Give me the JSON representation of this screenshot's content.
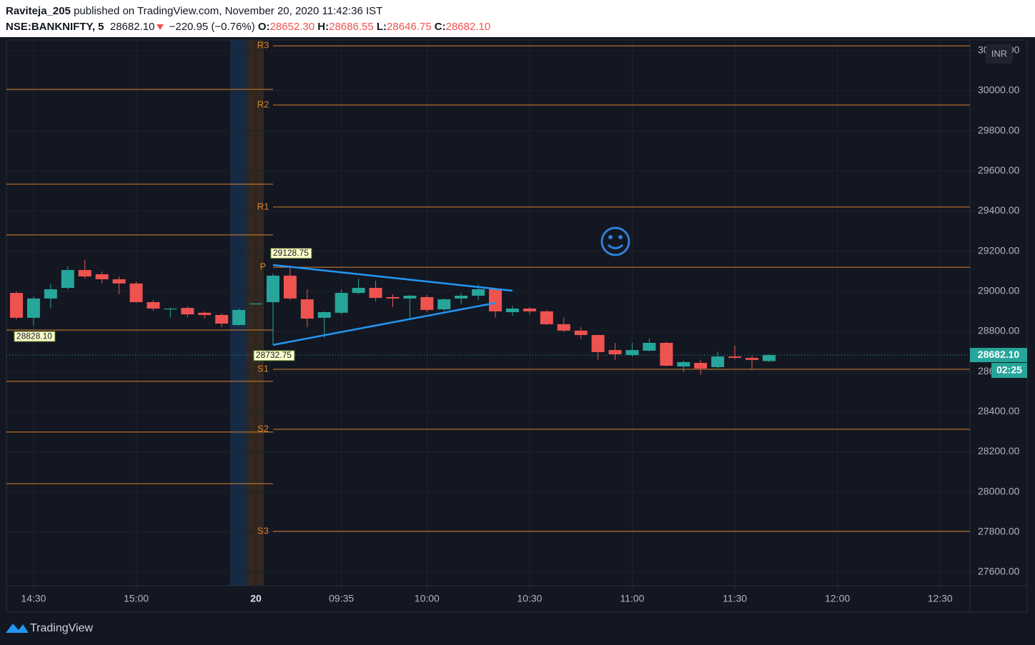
{
  "header": {
    "author": "Raviteja_205",
    "published": "published on TradingView.com, November 20, 2020 11:42:36 IST",
    "symbol": "NSE:BANKNIFTY, 5",
    "last": "28682.10",
    "change": "−220.95 (−0.76%)",
    "ohlc": [
      {
        "key": "O:",
        "value": "28652.30"
      },
      {
        "key": "H:",
        "value": "28686.55"
      },
      {
        "key": "L:",
        "value": "28646.75"
      },
      {
        "key": "C:",
        "value": "28682.10"
      }
    ]
  },
  "chart_data": {
    "type": "candlestick",
    "categories": [
      null,
      "14:30",
      null,
      null,
      null,
      null,
      null,
      "15:00",
      null,
      null,
      null,
      null,
      null,
      null,
      "20",
      null,
      null,
      null,
      null,
      "09:35",
      null,
      null,
      null,
      null,
      "10:00",
      null,
      null,
      null,
      null,
      null,
      "10:30",
      null,
      null,
      null,
      null,
      null,
      "11:00",
      null,
      null,
      null,
      null,
      null,
      "11:30",
      null,
      null,
      null,
      null,
      null,
      "12:00",
      null,
      null,
      null,
      null,
      null,
      "12:30"
    ],
    "open": [
      28992,
      28868,
      28964,
      29017,
      29106,
      29085,
      29060,
      29039,
      28946,
      28910,
      28917,
      28893,
      28882,
      28832,
      28935,
      28946,
      29078,
      28960,
      28868,
      28893,
      28992,
      29017,
      28971,
      28964,
      28971,
      28910,
      28964,
      28978,
      29010,
      28896,
      28914,
      28900,
      28836,
      28804,
      28782,
      28707,
      28682,
      28704,
      28743,
      28625,
      28643,
      28622,
      28675,
      28668,
      28652.3,
      null,
      null,
      null,
      null,
      null,
      null,
      null,
      null,
      null,
      null
    ],
    "high": [
      28999,
      28974,
      29035,
      29124,
      29156,
      29099,
      29074,
      29049,
      28957,
      28917,
      28925,
      28900,
      28889,
      28914,
      28939,
      29088,
      29128.75,
      29010,
      28900,
      29010,
      29063,
      29053,
      28985,
      28982,
      28982,
      28964,
      28992,
      29035,
      29017,
      28928,
      28921,
      28907,
      28868,
      28821,
      28785,
      28743,
      28743,
      28764,
      28747,
      28654,
      28658,
      28697,
      28729,
      28679,
      28686.55,
      null,
      null,
      null,
      null,
      null,
      null,
      null,
      null,
      null,
      null
    ],
    "low": [
      28860,
      28828.1,
      28914,
      29010,
      29063,
      29039,
      28985,
      28942,
      28903,
      28868,
      28871,
      28864,
      28821,
      28828,
      28935,
      28732.75,
      28957,
      28821,
      28768,
      28885,
      28985,
      28950,
      28921,
      28868,
      28896,
      28900,
      28935,
      28957,
      28868,
      28878,
      28885,
      28832,
      28796,
      28761,
      28658,
      28658,
      28675,
      28700,
      28625,
      28597,
      28583,
      28615,
      28661,
      28611,
      28646.75,
      null,
      null,
      null,
      null,
      null,
      null,
      null,
      null,
      null,
      null
    ],
    "close": [
      28868,
      28964,
      29010,
      29106,
      29074,
      29060,
      29039,
      28946,
      28914,
      28914,
      28885,
      28882,
      28839,
      28907,
      28939,
      29078,
      28964,
      28864,
      28896,
      28992,
      29017,
      28967,
      28964,
      28978,
      28907,
      28960,
      28978,
      29010,
      28900,
      28914,
      28900,
      28836,
      28804,
      28782,
      28697,
      28686,
      28707,
      28743,
      28629,
      28647,
      28615,
      28675,
      28668,
      28658,
      28682.1,
      null,
      null,
      null,
      null,
      null,
      null,
      null,
      null,
      null,
      null
    ],
    "up_color": "#26a69a",
    "down_color": "#ef5350",
    "ylim": [
      27532,
      30253
    ],
    "yticks": [
      {
        "value": 27600,
        "label": "27600.00"
      },
      {
        "value": 27800,
        "label": "27800.00"
      },
      {
        "value": 28000,
        "label": "28000.00"
      },
      {
        "value": 28200,
        "label": "28200.00"
      },
      {
        "value": 28400,
        "label": "28400.00"
      },
      {
        "value": 28600,
        "label": "28600.00"
      },
      {
        "value": 28800,
        "label": "28800.00"
      },
      {
        "value": 29000,
        "label": "29000.00"
      },
      {
        "value": 29200,
        "label": "29200.00"
      },
      {
        "value": 29400,
        "label": "29400.00"
      },
      {
        "value": 29600,
        "label": "29600.00"
      },
      {
        "value": 29800,
        "label": "29800.00"
      },
      {
        "value": 30000,
        "label": "30000.00"
      },
      {
        "value": 30200,
        "label": "30200.00"
      }
    ],
    "grid": true,
    "pivot_color": "#d9822b",
    "pivots": [
      {
        "values": [
          30007,
          29534,
          29281,
          28807,
          28551,
          28298,
          28041
        ]
      },
      {
        "labels": [
          "R3",
          "R2",
          "R1",
          "P",
          "S1",
          "S2",
          "S3"
        ],
        "values": [
          30224,
          29929,
          29420,
          29120,
          28611,
          28312,
          27803
        ]
      }
    ],
    "trendline_color": "#2196f3",
    "trendlines": [
      {
        "x": [
          15,
          29
        ],
        "values": [
          29131,
          29003
        ]
      },
      {
        "x": [
          15,
          28
        ],
        "values": [
          28732.75,
          28942
        ]
      }
    ],
    "annotations": [
      {
        "x": 1,
        "value": 28828.1,
        "label": "28828.10"
      },
      {
        "x": 16,
        "value": 29128.75,
        "label": "29128.75"
      },
      {
        "x": 15,
        "value": 28732.75,
        "label": "28732.75"
      }
    ],
    "last_price": {
      "value": 28682.1,
      "label": "28682.10"
    },
    "countdown": "02:25",
    "currency": "INR"
  },
  "footer": {
    "brand": "TradingView"
  }
}
